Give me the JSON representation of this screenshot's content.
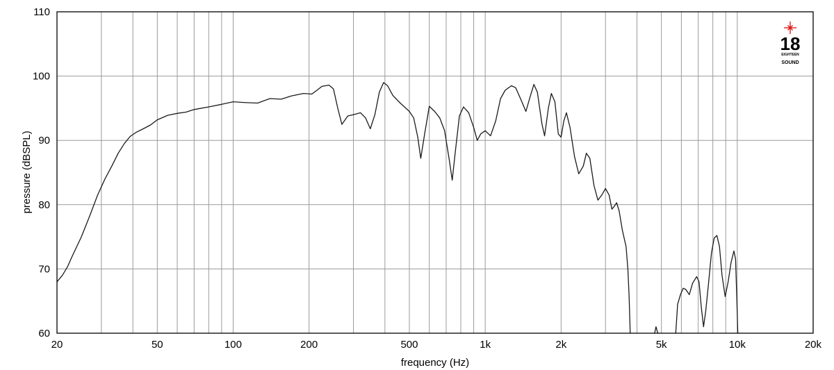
{
  "chart_data": {
    "type": "line",
    "xlabel": "frequency (Hz)",
    "ylabel": "pressure (dBSPL)",
    "xscale": "log",
    "xlim": [
      20,
      20000
    ],
    "ylim": [
      60,
      110
    ],
    "grid": true,
    "x_ticks": [
      {
        "value": 20,
        "label": "20"
      },
      {
        "value": 50,
        "label": "50"
      },
      {
        "value": 100,
        "label": "100"
      },
      {
        "value": 200,
        "label": "200"
      },
      {
        "value": 500,
        "label": "500"
      },
      {
        "value": 1000,
        "label": "1k"
      },
      {
        "value": 2000,
        "label": "2k"
      },
      {
        "value": 5000,
        "label": "5k"
      },
      {
        "value": 10000,
        "label": "10k"
      },
      {
        "value": 20000,
        "label": "20k"
      }
    ],
    "y_ticks": [
      {
        "value": 60,
        "label": "60"
      },
      {
        "value": 70,
        "label": "70"
      },
      {
        "value": 80,
        "label": "80"
      },
      {
        "value": 90,
        "label": "90"
      },
      {
        "value": 100,
        "label": "100"
      },
      {
        "value": 110,
        "label": "110"
      }
    ],
    "series": [
      {
        "segments": [
          [
            [
              20,
              68.0
            ],
            [
              21,
              69.0
            ],
            [
              22,
              70.3
            ],
            [
              23,
              72.0
            ],
            [
              25,
              75.0
            ],
            [
              27,
              78.3
            ],
            [
              29,
              81.5
            ],
            [
              31,
              84.0
            ],
            [
              33,
              86.0
            ],
            [
              35,
              88.0
            ],
            [
              37,
              89.5
            ],
            [
              39,
              90.6
            ],
            [
              41,
              91.2
            ],
            [
              44,
              91.8
            ],
            [
              47,
              92.4
            ],
            [
              50,
              93.2
            ],
            [
              55,
              93.9
            ],
            [
              60,
              94.2
            ],
            [
              65,
              94.4
            ],
            [
              70,
              94.8
            ],
            [
              80,
              95.2
            ],
            [
              90,
              95.6
            ],
            [
              100,
              96.0
            ],
            [
              110,
              95.9
            ],
            [
              125,
              95.8
            ],
            [
              140,
              96.5
            ],
            [
              155,
              96.4
            ],
            [
              170,
              96.9
            ],
            [
              190,
              97.3
            ],
            [
              205,
              97.2
            ],
            [
              215,
              97.8
            ],
            [
              225,
              98.4
            ],
            [
              240,
              98.6
            ],
            [
              250,
              98.0
            ],
            [
              260,
              95.0
            ],
            [
              270,
              92.5
            ],
            [
              285,
              93.8
            ],
            [
              300,
              94.0
            ],
            [
              320,
              94.3
            ],
            [
              335,
              93.5
            ],
            [
              350,
              91.8
            ],
            [
              365,
              94.0
            ],
            [
              380,
              97.5
            ],
            [
              395,
              99.0
            ],
            [
              410,
              98.5
            ],
            [
              430,
              97.0
            ],
            [
              460,
              95.8
            ],
            [
              500,
              94.5
            ],
            [
              520,
              93.5
            ],
            [
              540,
              90.5
            ],
            [
              555,
              87.2
            ],
            [
              575,
              91.0
            ],
            [
              600,
              95.3
            ],
            [
              630,
              94.5
            ],
            [
              660,
              93.5
            ],
            [
              690,
              91.5
            ],
            [
              720,
              87.0
            ],
            [
              740,
              83.8
            ],
            [
              760,
              88.0
            ],
            [
              790,
              93.8
            ],
            [
              820,
              95.2
            ],
            [
              860,
              94.3
            ],
            [
              900,
              92.0
            ],
            [
              930,
              90.0
            ],
            [
              960,
              91.0
            ],
            [
              1000,
              91.5
            ],
            [
              1050,
              90.7
            ],
            [
              1100,
              93.0
            ],
            [
              1150,
              96.5
            ],
            [
              1200,
              97.8
            ],
            [
              1270,
              98.5
            ],
            [
              1320,
              98.2
            ],
            [
              1380,
              96.5
            ],
            [
              1450,
              94.5
            ],
            [
              1500,
              96.5
            ],
            [
              1560,
              98.7
            ],
            [
              1610,
              97.5
            ],
            [
              1680,
              92.5
            ],
            [
              1720,
              90.7
            ],
            [
              1780,
              95.0
            ],
            [
              1830,
              97.3
            ],
            [
              1890,
              96.0
            ],
            [
              1950,
              91.0
            ],
            [
              2000,
              90.5
            ],
            [
              2050,
              93.0
            ],
            [
              2100,
              94.3
            ],
            [
              2170,
              92.0
            ],
            [
              2260,
              87.5
            ],
            [
              2350,
              84.8
            ],
            [
              2450,
              86.0
            ],
            [
              2520,
              88.0
            ],
            [
              2600,
              87.2
            ],
            [
              2700,
              83.0
            ],
            [
              2800,
              80.7
            ],
            [
              2900,
              81.5
            ],
            [
              3000,
              82.5
            ],
            [
              3100,
              81.5
            ],
            [
              3180,
              79.3
            ],
            [
              3260,
              79.8
            ],
            [
              3320,
              80.3
            ],
            [
              3400,
              79.0
            ],
            [
              3500,
              76.0
            ],
            [
              3620,
              73.5
            ],
            [
              3680,
              70.0
            ],
            [
              3720,
              66.0
            ],
            [
              3760,
              60.0
            ]
          ],
          [
            [
              4700,
              60.0
            ],
            [
              4760,
              61.0
            ],
            [
              4820,
              60.2
            ],
            [
              4850,
              60.0
            ]
          ],
          [
            [
              5700,
              60.0
            ],
            [
              5800,
              64.5
            ],
            [
              5950,
              66.0
            ],
            [
              6100,
              67.0
            ],
            [
              6250,
              66.8
            ],
            [
              6450,
              66.0
            ],
            [
              6650,
              67.8
            ],
            [
              6900,
              68.8
            ],
            [
              7050,
              68.0
            ],
            [
              7200,
              64.0
            ],
            [
              7350,
              61.0
            ],
            [
              7500,
              63.5
            ],
            [
              7700,
              68.0
            ],
            [
              7900,
              72.5
            ],
            [
              8100,
              74.8
            ],
            [
              8300,
              75.2
            ],
            [
              8500,
              73.5
            ],
            [
              8700,
              69.0
            ],
            [
              8950,
              65.7
            ],
            [
              9200,
              68.0
            ],
            [
              9450,
              71.0
            ],
            [
              9700,
              72.8
            ],
            [
              9850,
              71.5
            ],
            [
              9950,
              66.0
            ],
            [
              10050,
              60.0
            ]
          ]
        ]
      }
    ]
  },
  "logo": {
    "number": "18",
    "small": "EIGHTEEN",
    "word": "SOUND",
    "accent": "#e0201f"
  }
}
